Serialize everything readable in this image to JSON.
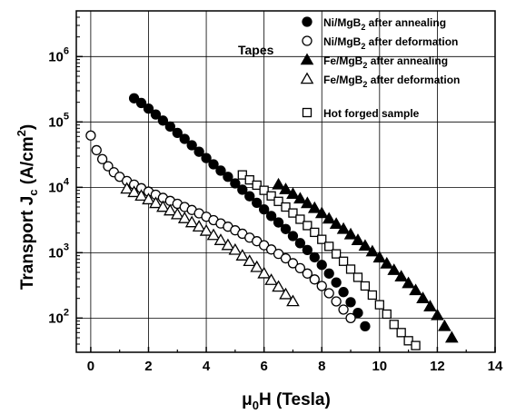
{
  "chart_data": {
    "type": "scatter",
    "title": "",
    "xlabel": "μ0H (Tesla)",
    "xlabel_parts": {
      "pre": "μ",
      "sub": "0",
      "post": "H (Tesla)"
    },
    "ylabel": "Transport Jc (A/cm2)",
    "ylabel_parts": {
      "pre": "Transport J",
      "sub": "c",
      "mid": " (A/cm",
      "sup": "2",
      "post": ")"
    },
    "xlim": [
      -0.5,
      14
    ],
    "ylim": [
      30,
      5000000
    ],
    "yscale": "log",
    "xticks": [
      0,
      2,
      4,
      6,
      8,
      10,
      12,
      14
    ],
    "xtick_labels": [
      "0",
      "2",
      "4",
      "6",
      "8",
      "10",
      "12",
      "14"
    ],
    "yticks": [
      100,
      1000,
      10000,
      100000,
      1000000
    ],
    "ytick_labels": [
      {
        "base": "10",
        "exp": "2"
      },
      {
        "base": "10",
        "exp": "3"
      },
      {
        "base": "10",
        "exp": "4"
      },
      {
        "base": "10",
        "exp": "5"
      },
      {
        "base": "10",
        "exp": "6"
      }
    ],
    "grid": true,
    "legend_position": "top-right",
    "annotations": [
      "Tapes"
    ],
    "series": [
      {
        "name": "Ni/MgB2 after annealing",
        "label_parts": {
          "pre": "Ni/MgB",
          "sub": "2",
          "post": " after annealing"
        },
        "marker": "filled-circle",
        "x": [
          1.5,
          1.75,
          2.0,
          2.25,
          2.5,
          2.75,
          3.0,
          3.25,
          3.5,
          3.75,
          4.0,
          4.25,
          4.5,
          4.75,
          5.0,
          5.25,
          5.5,
          5.75,
          6.0,
          6.25,
          6.5,
          6.75,
          7.0,
          7.25,
          7.5,
          7.75,
          8.0,
          8.25,
          8.5,
          8.75,
          9.0,
          9.25,
          9.5
        ],
        "y": [
          230000,
          195000,
          160000,
          130000,
          105000,
          85000,
          68000,
          55000,
          44000,
          35000,
          28000,
          22500,
          18000,
          14500,
          11500,
          9200,
          7300,
          5800,
          4600,
          3650,
          2900,
          2300,
          1800,
          1400,
          1100,
          850,
          650,
          480,
          350,
          250,
          175,
          120,
          75
        ]
      },
      {
        "name": "Ni/MgB2 after deformation",
        "label_parts": {
          "pre": "Ni/MgB",
          "sub": "2",
          "post": " after deformation"
        },
        "marker": "open-circle",
        "x": [
          0.0,
          0.2,
          0.4,
          0.6,
          0.8,
          1.0,
          1.25,
          1.5,
          1.75,
          2.0,
          2.25,
          2.5,
          2.75,
          3.0,
          3.25,
          3.5,
          3.75,
          4.0,
          4.25,
          4.5,
          4.75,
          5.0,
          5.25,
          5.5,
          5.75,
          6.0,
          6.25,
          6.5,
          6.75,
          7.0,
          7.25,
          7.5,
          7.75,
          8.0,
          8.25,
          8.5,
          8.75,
          9.0
        ],
        "y": [
          62000,
          37000,
          27000,
          21000,
          17000,
          14500,
          12500,
          11000,
          9700,
          8600,
          7700,
          6900,
          6200,
          5600,
          5000,
          4500,
          4000,
          3550,
          3150,
          2800,
          2500,
          2200,
          1950,
          1700,
          1500,
          1300,
          1120,
          960,
          820,
          690,
          580,
          480,
          390,
          310,
          240,
          180,
          135,
          100
        ]
      },
      {
        "name": "Fe/MgB2 after annealing",
        "label_parts": {
          "pre": "Fe/MgB",
          "sub": "2",
          "post": " after annealing"
        },
        "marker": "filled-triangle",
        "x": [
          6.5,
          6.75,
          7.0,
          7.25,
          7.5,
          7.75,
          8.0,
          8.25,
          8.5,
          8.75,
          9.0,
          9.25,
          9.5,
          9.75,
          10.0,
          10.25,
          10.5,
          10.75,
          11.0,
          11.25,
          11.5,
          11.75,
          12.0,
          12.25,
          12.5
        ],
        "y": [
          11000,
          9300,
          7900,
          6700,
          5700,
          4800,
          4000,
          3300,
          2750,
          2300,
          1900,
          1550,
          1270,
          1040,
          840,
          680,
          540,
          430,
          340,
          265,
          200,
          150,
          110,
          75,
          50
        ]
      },
      {
        "name": "Fe/MgB2 after deformation",
        "label_parts": {
          "pre": "Fe/MgB",
          "sub": "2",
          "post": " after deformation"
        },
        "marker": "open-triangle",
        "x": [
          1.25,
          1.5,
          1.75,
          2.0,
          2.25,
          2.5,
          2.75,
          3.0,
          3.25,
          3.5,
          3.75,
          4.0,
          4.25,
          4.5,
          4.75,
          5.0,
          5.25,
          5.5,
          5.75,
          6.0,
          6.25,
          6.5,
          6.75,
          7.0
        ],
        "y": [
          9500,
          8400,
          7400,
          6500,
          5700,
          5000,
          4400,
          3850,
          3350,
          2900,
          2500,
          2150,
          1850,
          1550,
          1300,
          1100,
          900,
          740,
          600,
          480,
          380,
          300,
          230,
          180
        ]
      },
      {
        "name": "Hot forged sample",
        "label_parts": {
          "pre": "Hot forged sample",
          "sub": "",
          "post": ""
        },
        "marker": "open-square",
        "x": [
          5.25,
          5.5,
          5.75,
          6.0,
          6.25,
          6.5,
          6.75,
          7.0,
          7.25,
          7.5,
          7.75,
          8.0,
          8.25,
          8.5,
          8.75,
          9.0,
          9.25,
          9.5,
          9.75,
          10.0,
          10.25,
          10.5,
          10.75,
          11.0,
          11.25
        ],
        "y": [
          15500,
          13000,
          10800,
          9000,
          7400,
          6100,
          5000,
          4050,
          3250,
          2600,
          2050,
          1600,
          1250,
          960,
          740,
          560,
          420,
          310,
          225,
          160,
          115,
          80,
          60,
          45,
          38
        ]
      }
    ]
  }
}
